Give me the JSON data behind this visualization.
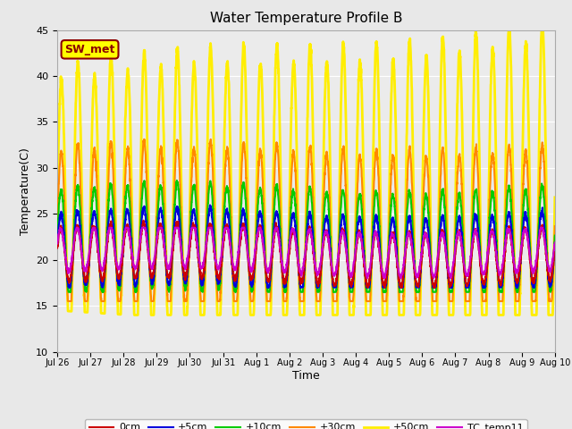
{
  "title": "Water Temperature Profile B",
  "xlabel": "Time",
  "ylabel": "Temperature(C)",
  "ylim": [
    10,
    45
  ],
  "yticks": [
    10,
    15,
    20,
    25,
    30,
    35,
    40,
    45
  ],
  "fig_bg_color": "#e8e8e8",
  "plot_bg_color": "#ebebeb",
  "grid_color": "#ffffff",
  "annotation_text": "SW_met",
  "annotation_bg": "#ffff00",
  "annotation_border": "#8B0000",
  "annotation_text_color": "#8B0000",
  "x_tick_labels": [
    "Jul 26",
    "Jul 27",
    "Jul 28",
    "Jul 29",
    "Jul 30",
    "Jul 31",
    "Aug 1",
    "Aug 2",
    "Aug 3",
    "Aug 4",
    "Aug 5",
    "Aug 6",
    "Aug 7",
    "Aug 8",
    "Aug 9",
    "Aug 10"
  ],
  "legend_items": [
    {
      "label": "0cm",
      "color": "#cc0000",
      "lw": 1.5
    },
    {
      "label": "+5cm",
      "color": "#0000dd",
      "lw": 1.5
    },
    {
      "label": "+10cm",
      "color": "#00cc00",
      "lw": 1.5
    },
    {
      "label": "+30cm",
      "color": "#ff8800",
      "lw": 1.5
    },
    {
      "label": "+50cm",
      "color": "#ffee00",
      "lw": 2.0
    },
    {
      "label": "TC_temp11",
      "color": "#cc00cc",
      "lw": 1.5
    }
  ],
  "peaks_per_day": 2,
  "n_days": 15
}
